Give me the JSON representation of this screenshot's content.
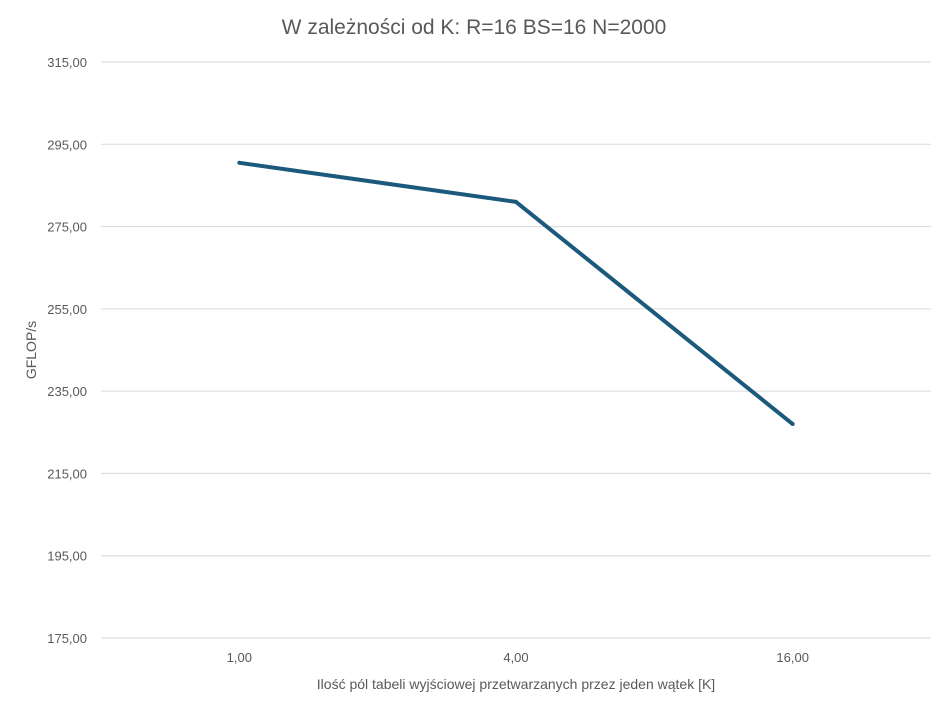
{
  "chart_data": {
    "type": "line",
    "title": "W zależności od K: R=16 BS=16 N=2000",
    "xlabel": "Ilość pól tabeli wyjściowej przetwarzanych przez jeden wątek [K]",
    "ylabel": "GFLOP/s",
    "categories": [
      "1,00",
      "4,00",
      "16,00"
    ],
    "series": [
      {
        "name": "",
        "values": [
          290.5,
          281.0,
          227.0
        ],
        "color": "#1b5a7c"
      }
    ],
    "y_ticks": [
      "175,00",
      "195,00",
      "215,00",
      "235,00",
      "255,00",
      "275,00",
      "295,00",
      "315,00"
    ],
    "ylim": [
      175,
      315
    ],
    "y_step": 20,
    "grid": true,
    "legend": "none",
    "colors": {
      "line": "#1b5a7c",
      "grid": "#d9d9d9",
      "text": "#595959",
      "title": "#595959"
    }
  }
}
